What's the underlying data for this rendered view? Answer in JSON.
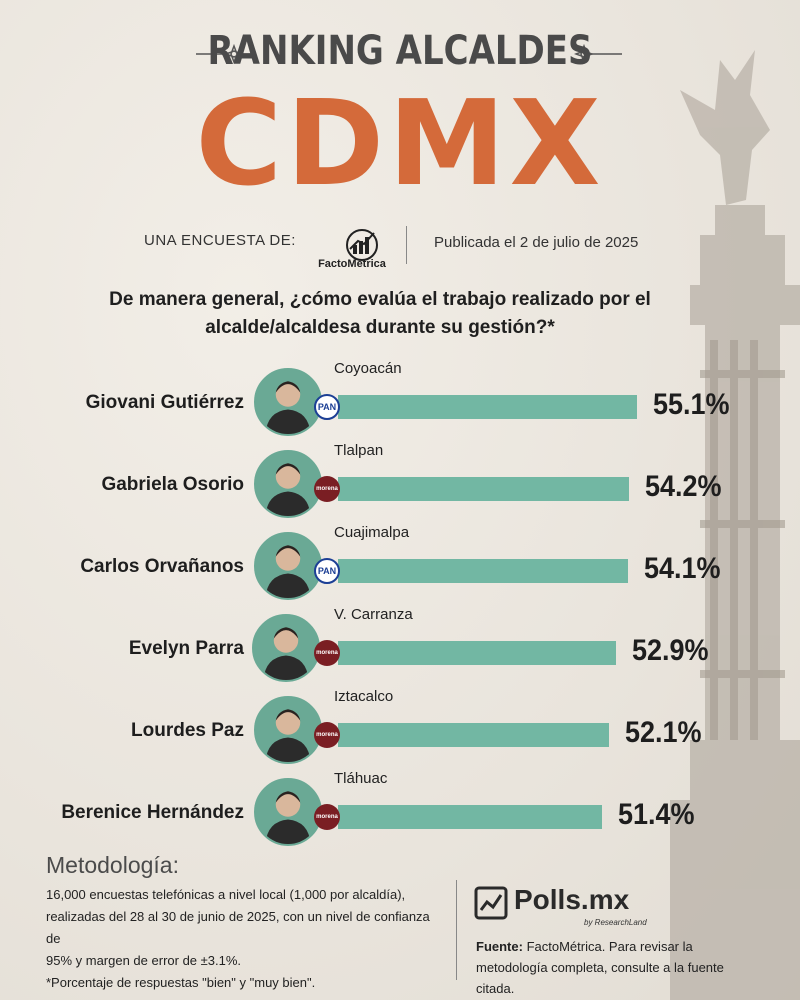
{
  "header": {
    "title_top": "RANKING ALCALDES",
    "title_main": "CDMX",
    "byline": "UNA ENCUESTA DE:",
    "pollster_logo": "FactoMétrica",
    "published": "Publicada el 2 de julio de 2025"
  },
  "question": "De manera general, ¿cómo evalúa el trabajo realizado por el alcalde/alcaldesa durante su gestión?*",
  "chart_data": {
    "type": "bar",
    "orientation": "horizontal",
    "categories": [
      "Giovani Gutiérrez",
      "Gabriela Osorio",
      "Carlos Orvañanos",
      "Evelyn Parra",
      "Lourdes Paz",
      "Berenice Hernández"
    ],
    "districts": [
      "Coyoacán",
      "Tlalpan",
      "Cuajimalpa",
      "V. Carranza",
      "Iztacalco",
      "Tláhuac"
    ],
    "parties": [
      "PAN",
      "morena",
      "PAN",
      "morena",
      "morena",
      "morena"
    ],
    "values": [
      55.1,
      54.2,
      54.1,
      52.9,
      52.1,
      51.4
    ],
    "value_labels": [
      "55.1%",
      "54.2%",
      "54.1%",
      "52.9%",
      "52.1%",
      "51.4%"
    ],
    "bar_color": "#72b7a3"
  },
  "methodology": {
    "title": "Metodología:",
    "line1": "16,000 encuestas telefónicas a nivel local (1,000 por alcaldía),",
    "line2": "realizadas del 28 al 30 de junio de 2025, con un nivel de confianza de",
    "line3": "95% y margen de error de ±3.1%.",
    "line4": "*Porcentaje de respuestas \"bien\" y \"muy bien\"."
  },
  "footer": {
    "brand": "Polls.mx",
    "brand_sub": "by ResearchLand",
    "source_label": "Fuente:",
    "source_text": " FactoMétrica. Para revisar la metodología completa, consulte a la fuente citada."
  },
  "colors": {
    "title_main": "#d46a3a",
    "bar": "#72b7a3",
    "pan": "#1c3f95",
    "morena": "#7a1e23"
  }
}
